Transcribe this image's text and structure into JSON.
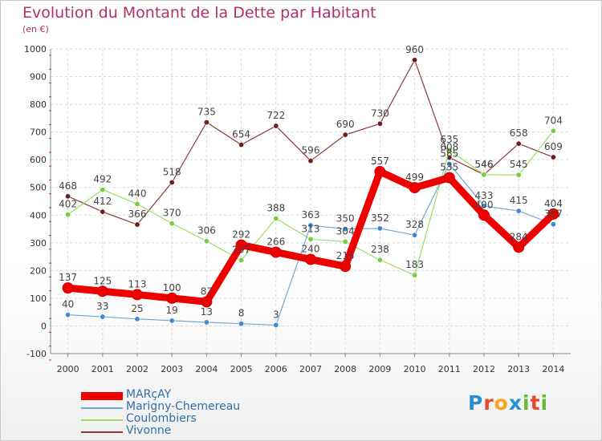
{
  "header": {
    "title": "Evolution du Montant de la Dette par Habitant",
    "unit": "(en €)"
  },
  "logo": {
    "text": "Proxiti",
    "colors": [
      "#2a8fd1",
      "#e8482c",
      "#f5a61e",
      "#2a8fd1",
      "#67b92e",
      "#e8482c",
      "#67b92e"
    ]
  },
  "chart_data": {
    "type": "line",
    "title": "Evolution du Montant de la Dette par Habitant",
    "ylabel": "(en €)",
    "xlabel": "",
    "x": [
      "2000",
      "2001",
      "2002",
      "2003",
      "2004",
      "2005",
      "2006",
      "2007",
      "2008",
      "2009",
      "2010",
      "2011",
      "2012",
      "2013",
      "2014"
    ],
    "ylim": [
      -100,
      1000
    ],
    "yticks": [
      "-100",
      "0",
      "100",
      "200",
      "300",
      "400",
      "500",
      "600",
      "700",
      "800",
      "900",
      "1000"
    ],
    "grid": true,
    "legend_position": "bottom-left",
    "series": [
      {
        "name": "MARçAY",
        "color": "#ee0000",
        "marker": "#ee0000",
        "thick": true,
        "values": [
          137,
          125,
          113,
          100,
          87,
          292,
          266,
          240,
          215,
          557,
          499,
          535,
          400,
          284,
          404
        ],
        "labels": [
          "137",
          "125",
          "113",
          "100",
          "87",
          "292",
          "266",
          "240",
          "215",
          "557",
          "499",
          "535",
          "400",
          "284",
          "404"
        ]
      },
      {
        "name": "Marigny-Chemereau",
        "color": "#6fa8d8",
        "marker": "#3d8ad0",
        "thick": false,
        "values": [
          40,
          33,
          25,
          19,
          13,
          8,
          3,
          363,
          350,
          352,
          328,
          585,
          433,
          415,
          367
        ],
        "labels": [
          "40",
          "33",
          "25",
          "19",
          "13",
          "8",
          "3",
          "363",
          "350",
          "352",
          "328",
          "585",
          "433",
          "415",
          "367"
        ]
      },
      {
        "name": "Coulombiers",
        "color": "#99dd66",
        "marker": "#77cc44",
        "thick": false,
        "values": [
          402,
          492,
          440,
          370,
          306,
          237,
          388,
          313,
          304,
          238,
          183,
          635,
          546,
          545,
          704
        ],
        "labels": [
          "402",
          "492",
          "440",
          "370",
          "306",
          "237",
          "388",
          "313",
          "304",
          "238",
          "183",
          "635",
          "546",
          "545",
          "704"
        ]
      },
      {
        "name": "Vivonne",
        "color": "#8b3a3a",
        "marker": "#6b1e1e",
        "thick": false,
        "values": [
          468,
          412,
          366,
          518,
          735,
          654,
          722,
          596,
          690,
          730,
          960,
          608,
          546,
          658,
          609
        ],
        "labels": [
          "468",
          "412",
          "366",
          "518",
          "735",
          "654",
          "722",
          "596",
          "690",
          "730",
          "960",
          "608",
          "546",
          "658",
          "609"
        ]
      }
    ]
  }
}
